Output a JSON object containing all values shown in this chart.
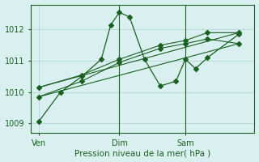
{
  "xlabel": "Pression niveau de la mer( hPa )",
  "bg_color": "#daf0f0",
  "grid_color": "#b8d8d8",
  "line_color": "#1a6020",
  "tick_label_color": "#1a6020",
  "xlabel_color": "#1a6020",
  "ylim": [
    1008.7,
    1012.8
  ],
  "yticks": [
    1009,
    1010,
    1011,
    1012
  ],
  "xtick_positions": [
    0,
    103,
    187,
    255
  ],
  "xtick_labels": [
    "Ven",
    "Dim",
    "Sam"
  ],
  "vline_positions": [
    103,
    187
  ],
  "series1_x": [
    0,
    28,
    55,
    80,
    92,
    103,
    116,
    135,
    155,
    175,
    187,
    200,
    215,
    255
  ],
  "series1_y": [
    1009.05,
    1010.0,
    1010.5,
    1011.05,
    1012.15,
    1012.55,
    1012.4,
    1011.05,
    1010.2,
    1010.35,
    1011.05,
    1010.75,
    1011.1,
    1011.85
  ],
  "series2_x": [
    0,
    255
  ],
  "series2_y": [
    1009.85,
    1011.55
  ],
  "series3_x": [
    0,
    255
  ],
  "series3_y": [
    1010.15,
    1011.9
  ],
  "marker_x2": [
    0,
    55,
    103,
    155,
    187,
    215,
    255
  ],
  "marker_y2": [
    1009.85,
    1010.35,
    1010.95,
    1011.4,
    1011.55,
    1011.7,
    1011.55
  ],
  "marker_x3": [
    0,
    55,
    103,
    155,
    187,
    215,
    255
  ],
  "marker_y3": [
    1010.15,
    1010.55,
    1011.05,
    1011.5,
    1011.65,
    1011.9,
    1011.9
  ]
}
